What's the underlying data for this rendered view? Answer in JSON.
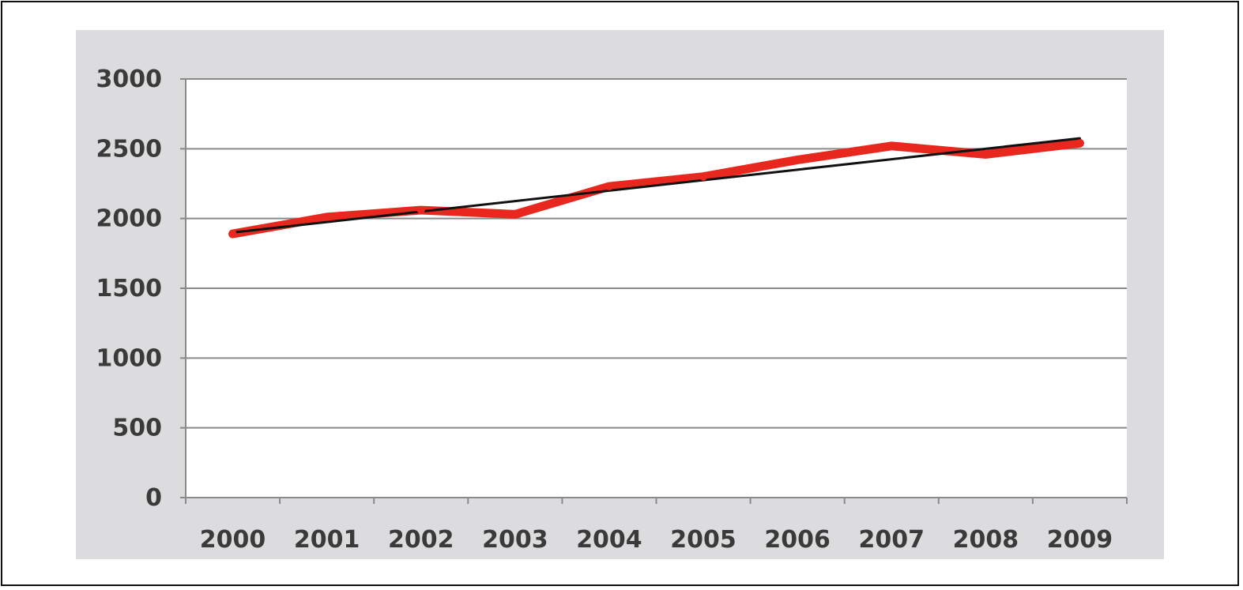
{
  "chart_data": {
    "type": "line",
    "title": "",
    "xlabel": "",
    "ylabel": "",
    "x": [
      "2000",
      "2001",
      "2002",
      "2003",
      "2004",
      "2005",
      "2006",
      "2007",
      "2008",
      "2009"
    ],
    "ylim": [
      0,
      3000
    ],
    "yticks": [
      0,
      500,
      1000,
      1500,
      2000,
      2500,
      3000
    ],
    "grid": true,
    "legend": "none",
    "series": [
      {
        "color": "#e8281e",
        "values": [
          1890,
          2010,
          2060,
          2030,
          2230,
          2300,
          2420,
          2520,
          2460,
          2540
        ]
      },
      {
        "type": "trendline",
        "color": "#111111",
        "values": [
          1900,
          1975,
          2050,
          2125,
          2200,
          2275,
          2350,
          2425,
          2500,
          2575
        ]
      }
    ]
  }
}
